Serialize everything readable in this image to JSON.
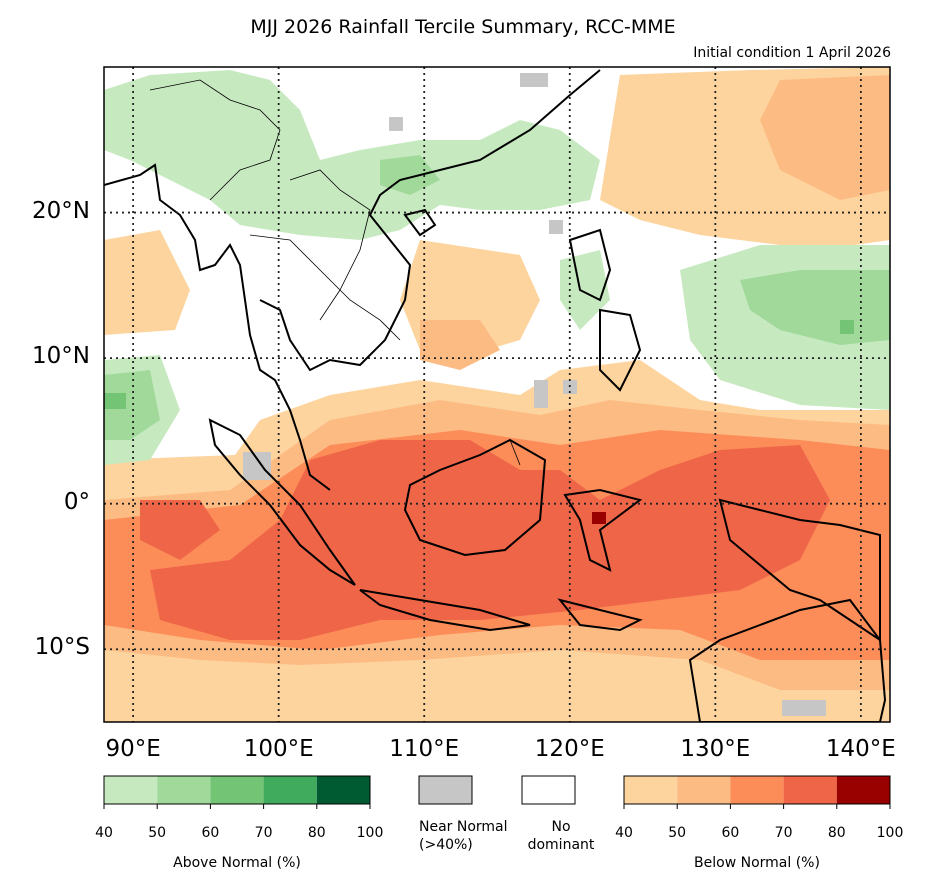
{
  "title": "MJJ 2026 Rainfall Tercile Summary, RCC-MME",
  "subtitle": "Initial condition 1 April 2026",
  "map": {
    "lon_range": [
      88,
      142
    ],
    "lat_range": [
      -15,
      30
    ],
    "lat_ticks": [
      {
        "value": 20,
        "label": "20°N"
      },
      {
        "value": 10,
        "label": "10°N"
      },
      {
        "value": 0,
        "label": "0°"
      },
      {
        "value": -10,
        "label": "10°S"
      }
    ],
    "lon_ticks": [
      {
        "value": 90,
        "label": "90°E"
      },
      {
        "value": 100,
        "label": "100°E"
      },
      {
        "value": 110,
        "label": "110°E"
      },
      {
        "value": 120,
        "label": "120°E"
      },
      {
        "value": 130,
        "label": "130°E"
      },
      {
        "value": 140,
        "label": "140°E"
      }
    ],
    "gridlines": "dotted",
    "region_description": "Southeast Asia, Maritime Continent"
  },
  "legend": {
    "above_normal": {
      "title": "Above Normal (%)",
      "ticks": [
        "40",
        "50",
        "60",
        "70",
        "80",
        "100"
      ],
      "colors": [
        "#c7e9c0",
        "#a1d99b",
        "#74c476",
        "#41ab5d",
        "#005a32"
      ]
    },
    "near_normal": {
      "label": "Near Normal\n(>40%)",
      "color": "#c6c6c6"
    },
    "no_dominant": {
      "label": "No\ndominant",
      "color": "#ffffff"
    },
    "below_normal": {
      "title": "Below Normal (%)",
      "ticks": [
        "40",
        "50",
        "60",
        "70",
        "80",
        "100"
      ],
      "colors": [
        "#fdd49e",
        "#fdbb84",
        "#fc8d59",
        "#ef6548",
        "#990000"
      ]
    }
  }
}
